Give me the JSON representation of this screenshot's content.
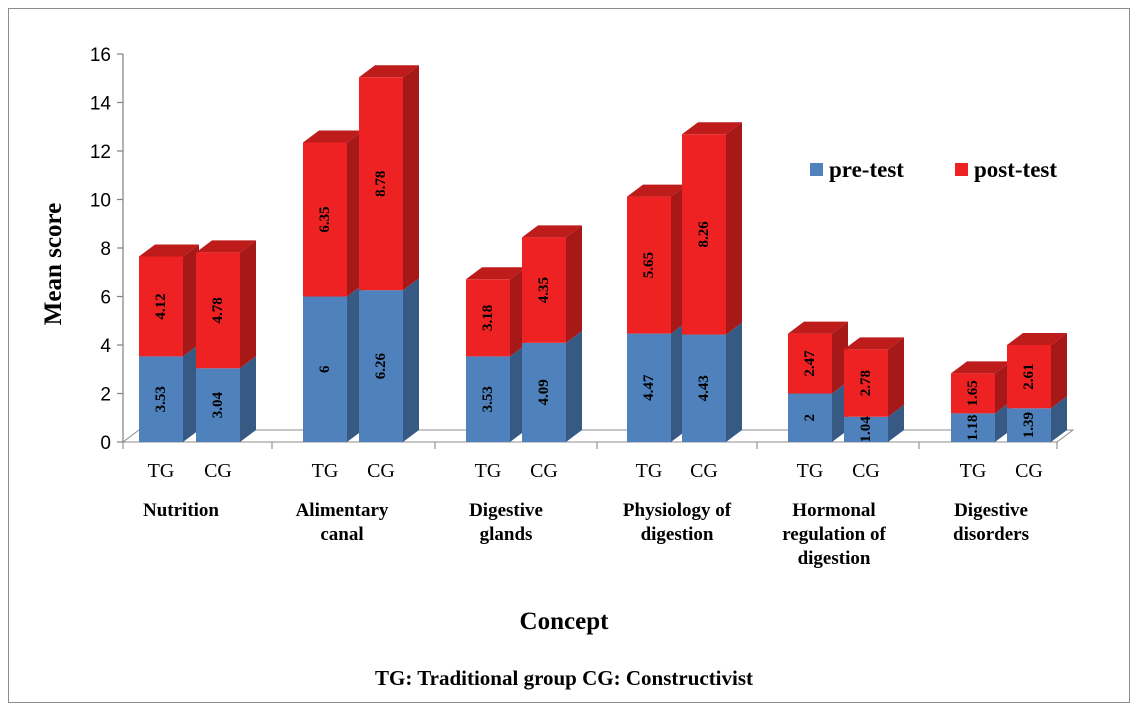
{
  "chart_data": {
    "type": "bar",
    "stacked": true,
    "three_d": true,
    "xlabel": "Concept",
    "ylabel": "Mean score",
    "ylim": [
      0,
      16
    ],
    "y_ticks": [
      "0",
      "2",
      "4",
      "6",
      "8",
      "10",
      "12",
      "14",
      "16"
    ],
    "legend_position": "right",
    "categories": [
      "Nutrition",
      "Alimentary canal",
      "Digestive glands",
      "Physiology of digestion",
      "Hormonal regulation of digestion",
      "Digestive disorders"
    ],
    "groups": [
      "TG",
      "CG"
    ],
    "series": [
      {
        "name": "pre-test",
        "color": "#4f81bd",
        "values": [
          [
            3.53,
            3.04
          ],
          [
            6,
            6.26
          ],
          [
            3.53,
            4.09
          ],
          [
            4.47,
            4.43
          ],
          [
            2,
            1.04
          ],
          [
            1.18,
            1.39
          ]
        ],
        "labels": [
          [
            "3.53",
            "3.04"
          ],
          [
            "6",
            "6.26"
          ],
          [
            "3.53",
            "4.09"
          ],
          [
            "4.47",
            "4.43"
          ],
          [
            "2",
            "1.04"
          ],
          [
            "1.18",
            "1.39"
          ]
        ]
      },
      {
        "name": "post-test",
        "color": "#ee2222",
        "values": [
          [
            4.12,
            4.78
          ],
          [
            6.35,
            8.78
          ],
          [
            3.18,
            4.35
          ],
          [
            5.65,
            8.26
          ],
          [
            2.47,
            2.78
          ],
          [
            1.65,
            2.61
          ]
        ],
        "labels": [
          [
            "4.12",
            "4.78"
          ],
          [
            "6.35",
            "8.78"
          ],
          [
            "3.18",
            "4.35"
          ],
          [
            "5.65",
            "8.26"
          ],
          [
            "2.47",
            "2.78"
          ],
          [
            "1.65",
            "2.61"
          ]
        ]
      }
    ],
    "footnote": "TG: Traditional group CG: Constructivist"
  }
}
